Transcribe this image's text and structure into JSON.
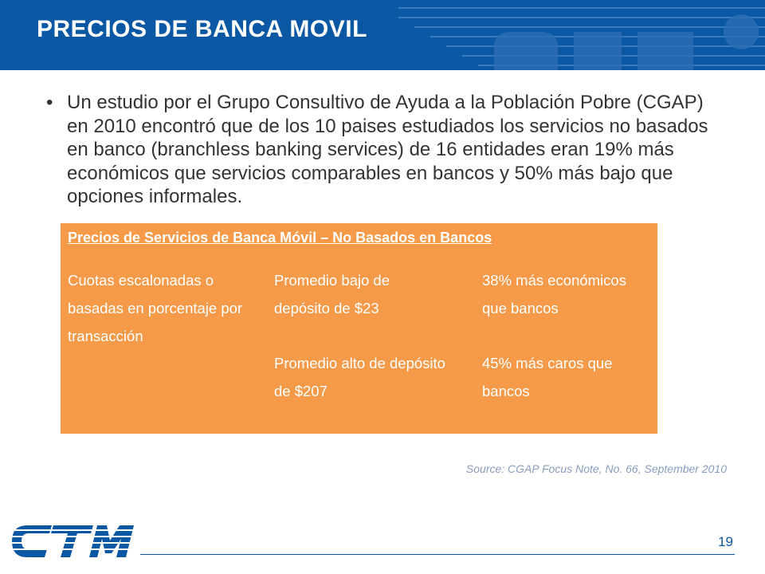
{
  "slide": {
    "title": "PRECIOS DE BANCA MOVIL",
    "bullet": "Un estudio por el Grupo Consultivo de Ayuda a la Población Pobre (CGAP) en 2010 encontró que de los 10 paises estudiados los servicios no basados en banco (branchless banking services) de 16 entidades eran 19% más económicos que servicios comparables en bancos y 50% más bajo que opciones informales.",
    "page_number": "19"
  },
  "table": {
    "title": "Precios de Servicios de Banca Móvil – No Basados en Bancos",
    "col1": "Cuotas escalonadas o basadas en porcentaje por transacción",
    "row1_col2": "Promedio bajo de depósito de $23",
    "row1_col3": "38% más económicos que bancos",
    "row2_col2": "Promedio alto de depósito de $207",
    "row2_col3": "45% más caros que bancos"
  },
  "source": "Source: CGAP Focus Note, No. 66, September 2010",
  "colors": {
    "header_blue": "#0a57a3",
    "box_orange": "#f59a49",
    "text_dark": "#333333"
  }
}
